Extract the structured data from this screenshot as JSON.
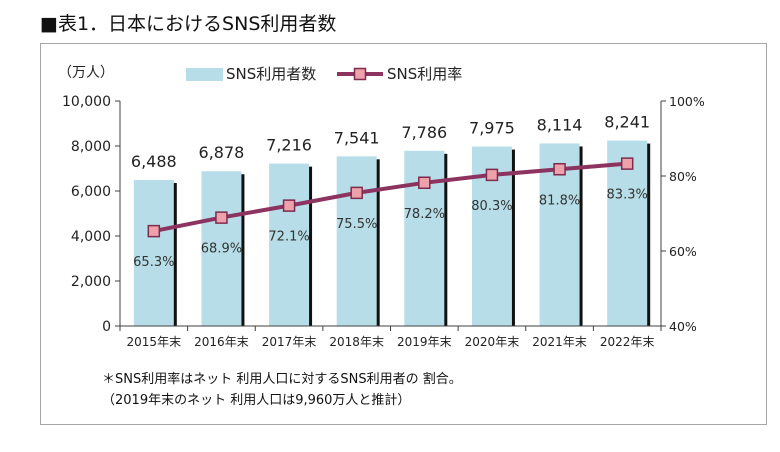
{
  "title": "■表1．日本におけるSNS利用者数",
  "chart_data": {
    "type": "bar",
    "categories": [
      "2015年末",
      "2016年末",
      "2017年末",
      "2018年末",
      "2019年末",
      "2020年末",
      "2021年末",
      "2022年末"
    ],
    "series": [
      {
        "name": "SNS利用者数",
        "type": "bar",
        "axis": "left",
        "values": [
          6488,
          6878,
          7216,
          7541,
          7786,
          7975,
          8114,
          8241
        ],
        "data_labels": [
          "6,488",
          "6,878",
          "7,216",
          "7,541",
          "7,786",
          "7,975",
          "8,114",
          "8,241"
        ],
        "color": "#b7dee8",
        "shadow_color": "#111111"
      },
      {
        "name": "SNS利用率",
        "type": "line",
        "axis": "right",
        "values": [
          65.3,
          68.9,
          72.1,
          75.5,
          78.2,
          80.3,
          81.8,
          83.3
        ],
        "data_labels": [
          "65.3%",
          "68.9%",
          "72.1%",
          "75.5%",
          "78.2%",
          "80.3%",
          "81.8%",
          "83.3%"
        ],
        "color": "#8c3360",
        "marker_fill": "#eda2ab",
        "marker_stroke": "#7e2b4f"
      }
    ],
    "ylabel": "（万人）",
    "ylim": [
      0,
      10000
    ],
    "yticks": [
      0,
      2000,
      4000,
      6000,
      8000,
      10000
    ],
    "ytick_labels": [
      "0",
      "2,000",
      "4,000",
      "6,000",
      "8,000",
      "10,000"
    ],
    "y2lim": [
      40,
      100
    ],
    "y2ticks": [
      40,
      60,
      80,
      100
    ],
    "y2tick_labels": [
      "40%",
      "60%",
      "80%",
      "100%"
    ],
    "grid": false,
    "legend": "top"
  },
  "notes": [
    "＊SNS利用率はネット 利用人口に対するSNS利用者の 割合。",
    "（2019年末のネット 利用人口は9,960万人と推計）"
  ]
}
